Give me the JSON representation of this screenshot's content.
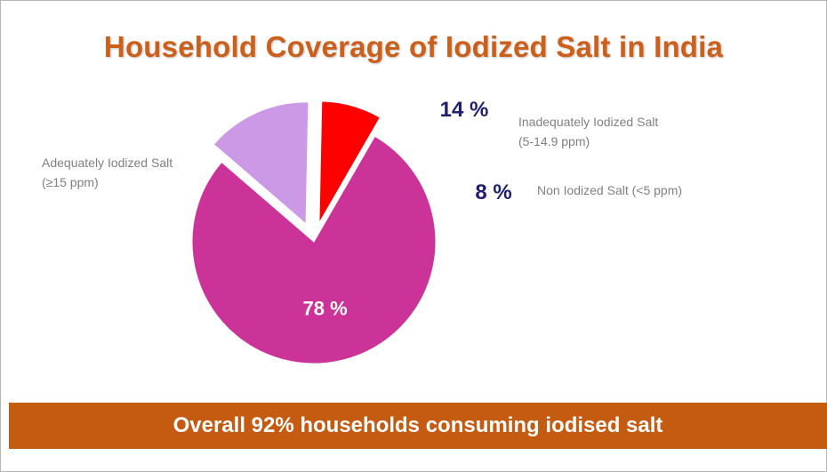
{
  "chart_data": {
    "type": "pie",
    "title": "Household Coverage of Iodized Salt in India",
    "slices": [
      {
        "category": "Adequately Iodized Salt",
        "sublabel": "(≥15 ppm)",
        "value": 78,
        "value_label": "78 %",
        "color": "#cc3399",
        "exploded": false
      },
      {
        "category": "Inadequately Iodized Salt",
        "sublabel": "(5-14.9 ppm)",
        "value": 14,
        "value_label": "14 %",
        "color": "#cc99e6",
        "exploded": true
      },
      {
        "category": "Non Iodized Salt (<5 ppm)",
        "sublabel": "",
        "value": 8,
        "value_label": "8 %",
        "color": "#ff0000",
        "exploded": true
      }
    ]
  },
  "banner": {
    "text": "Overall 92% households consuming iodised salt",
    "color": "#c55a11"
  }
}
